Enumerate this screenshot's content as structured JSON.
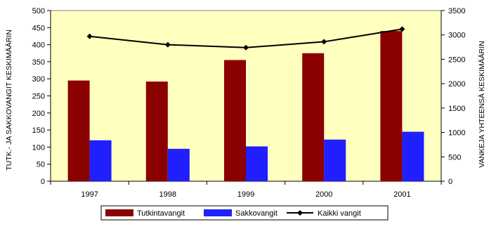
{
  "chart_data": {
    "type": "bar",
    "title": "",
    "categories": [
      "1997",
      "1998",
      "1999",
      "2000",
      "2001"
    ],
    "series": [
      {
        "name": "Tutkintavangit",
        "kind": "bar",
        "axis": "left",
        "color": "#8b0000",
        "values": [
          295,
          292,
          355,
          375,
          440
        ]
      },
      {
        "name": "Sakkovangit",
        "kind": "bar",
        "axis": "left",
        "color": "#1f1fff",
        "values": [
          120,
          95,
          102,
          122,
          145
        ]
      },
      {
        "name": "Kaikki vangit",
        "kind": "line",
        "axis": "right",
        "color": "#000000",
        "values": [
          2970,
          2800,
          2740,
          2860,
          3120
        ]
      }
    ],
    "ylabel_left": "TUTK.- JA SAKKOVANGIT KESKIMÄÄRIN",
    "ylabel_right": "VANKEJA YHTEENSÄ KESKIMÄÄRIN",
    "y_left": {
      "min": 0,
      "max": 500,
      "ticks": [
        0,
        50,
        100,
        150,
        200,
        250,
        300,
        350,
        400,
        450,
        500
      ]
    },
    "y_right": {
      "min": 0,
      "max": 3500,
      "ticks": [
        0,
        500,
        1000,
        1500,
        2000,
        2500,
        3000,
        3500
      ]
    },
    "plot_background": "#ffffc0",
    "grid": false,
    "legend_position": "bottom"
  }
}
